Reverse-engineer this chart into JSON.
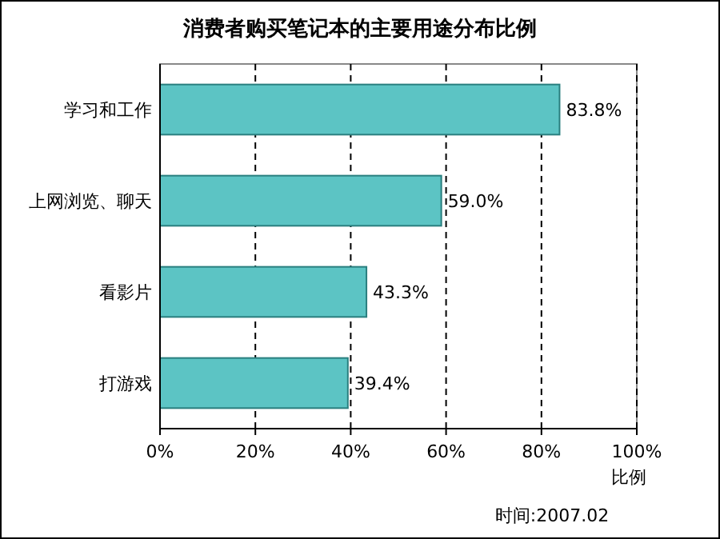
{
  "chart_data": {
    "type": "bar",
    "orientation": "horizontal",
    "title": "消费者购买笔记本的主要用途分布比例",
    "xlabel": "比例",
    "categories": [
      "学习和工作",
      "上网浏览、聊天",
      "看影片",
      "打游戏"
    ],
    "values": [
      83.8,
      59.0,
      43.3,
      39.4
    ],
    "value_labels": [
      "83.8%",
      "59.0%",
      "43.3%",
      "39.4%"
    ],
    "color": "#5cc4c4",
    "xlim": [
      0,
      100
    ],
    "xticks": [
      {
        "value": 0,
        "label": "0%"
      },
      {
        "value": 20,
        "label": "20%"
      },
      {
        "value": 40,
        "label": "40%"
      },
      {
        "value": 60,
        "label": "60%"
      },
      {
        "value": 80,
        "label": "80%"
      },
      {
        "value": 100,
        "label": "100%"
      }
    ],
    "grid": "x",
    "annotations": [
      "时间:2007.02"
    ]
  }
}
